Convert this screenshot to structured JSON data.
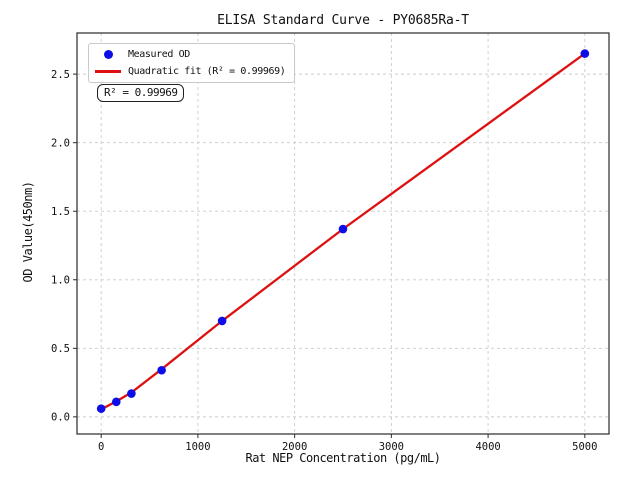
{
  "chart_data": {
    "type": "scatter",
    "title": "ELISA Standard Curve - PY0685Ra-T",
    "xlabel": "Rat NEP Concentration (pg/mL)",
    "ylabel": "OD Value(450nm)",
    "annotation": "R² = 0.99969",
    "r_squared": 0.99969,
    "xlim": [
      -250,
      5250
    ],
    "ylim": [
      -0.125,
      2.8
    ],
    "x_ticks": [
      0,
      1000,
      2000,
      3000,
      4000,
      5000
    ],
    "x_tick_labels": [
      "0",
      "1000",
      "2000",
      "3000",
      "4000",
      "5000"
    ],
    "y_ticks": [
      0,
      0.5,
      1,
      1.5,
      2,
      2.5
    ],
    "y_tick_labels": [
      "0.0",
      "0.5",
      "1.0",
      "1.5",
      "2.0",
      "2.5"
    ],
    "grid": true,
    "grid_style": "dashed",
    "legend_position": "upper left",
    "colors": {
      "points": "#0d0de8",
      "line": "#dd1111",
      "grid": "#cccccc",
      "frame": "#2a2a2a",
      "text": "#111111"
    },
    "legend": [
      {
        "label": "Measured OD",
        "marker": "dot",
        "color": "#0d0de8"
      },
      {
        "label": "Quadratic fit (R² = 0.99969)",
        "marker": "line",
        "color": "#dd1111"
      }
    ],
    "series": [
      {
        "name": "Measured OD",
        "type": "scatter",
        "color": "#0d0de8",
        "x": [
          0,
          156.25,
          312.5,
          625,
          1250,
          2500,
          5000
        ],
        "y": [
          0.06,
          0.11,
          0.17,
          0.34,
          0.7,
          1.37,
          2.65
        ]
      },
      {
        "name": "Quadratic fit",
        "type": "line",
        "color": "#dd1111",
        "x": [
          0,
          156.25,
          312.5,
          625,
          1250,
          2500,
          5000
        ],
        "y": [
          0.055,
          0.113,
          0.178,
          0.348,
          0.7,
          1.37,
          2.65
        ]
      }
    ]
  }
}
